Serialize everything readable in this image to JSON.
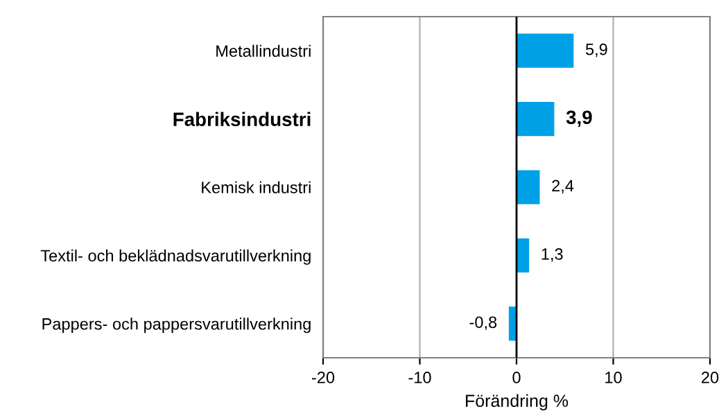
{
  "chart_data": {
    "type": "bar",
    "orientation": "horizontal",
    "xlabel": "Förändring %",
    "categories": [
      "Metallindustri",
      "Fabriksindustri",
      "Kemisk industri",
      "Textil- och beklädnadsvarutillverkning",
      "Pappers- och pappersvarutillverkning"
    ],
    "values": [
      5.9,
      3.9,
      2.4,
      1.3,
      -0.8
    ],
    "value_labels": [
      "5,9",
      "3,9",
      "2,4",
      "1,3",
      "-0,8"
    ],
    "color": "#00a0e6",
    "xlim": [
      -20,
      20
    ],
    "xticks": [
      -20,
      -10,
      0,
      10,
      20
    ],
    "grid": "x"
  }
}
